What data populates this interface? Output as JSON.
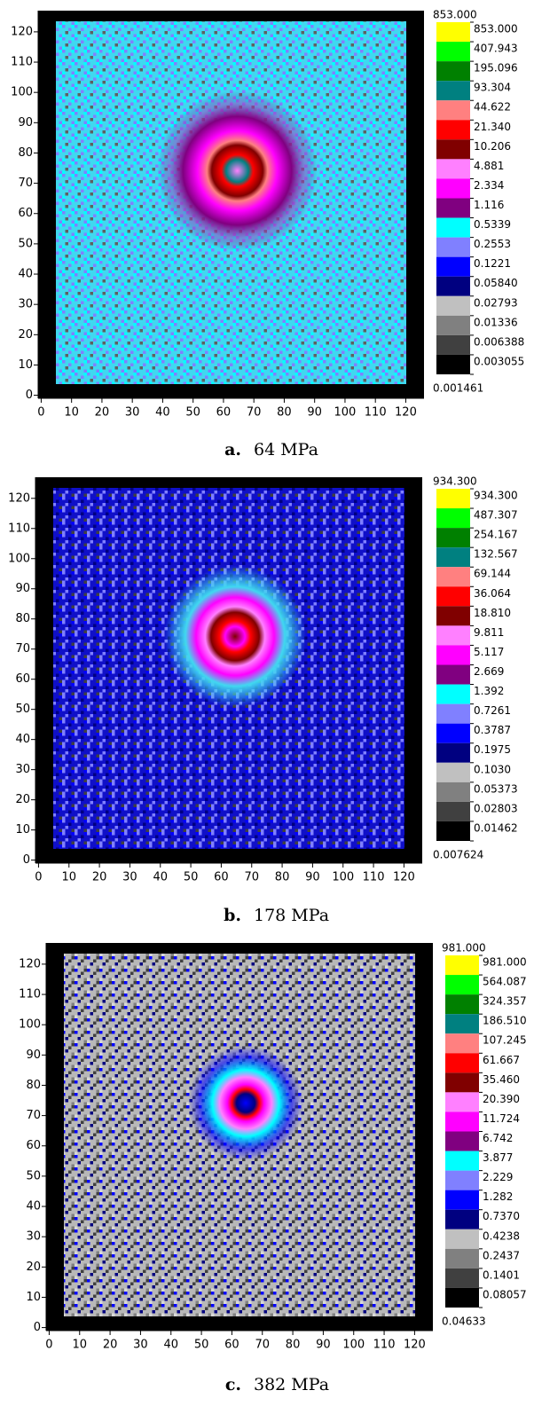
{
  "chart_data": [
    {
      "type": "heatmap",
      "panel_label": "a.",
      "title": "64 MPa",
      "xlim": [
        -1,
        126
      ],
      "ylim": [
        -1,
        127
      ],
      "xticks": [
        0,
        10,
        20,
        30,
        40,
        50,
        60,
        70,
        80,
        90,
        100,
        110,
        120
      ],
      "yticks": [
        0,
        10,
        20,
        30,
        40,
        50,
        60,
        70,
        80,
        90,
        100,
        110,
        120
      ],
      "colorbar": {
        "log": true,
        "cmax": {
          "value": 853,
          "label": "853.000"
        },
        "ticks": [
          {
            "value": 853,
            "label": "853.000"
          },
          407.943,
          195.096,
          93.304,
          44.622,
          {
            "value": 21.34,
            "label": "21.340"
          },
          10.206,
          4.881,
          2.334,
          1.116,
          0.5339,
          0.2553,
          0.1221,
          {
            "value": 0.0584,
            "label": "0.05840"
          },
          0.02793,
          0.01336,
          0.006388,
          0.003055,
          0.001461
        ],
        "colors": [
          "#ffff00",
          "#00ff00",
          "#008000",
          "#008080",
          "#ff8080",
          "#ff0000",
          "#800000",
          "#ff80ff",
          "#ff00ff",
          "#800080",
          "#00ffff",
          "#8080ff",
          "#0000ff",
          "#000080",
          "#c0c0c0",
          "#808080",
          "#404040",
          "#000000"
        ]
      }
    },
    {
      "type": "heatmap",
      "panel_label": "b.",
      "title": "178 MPa",
      "xlim": [
        -1,
        126
      ],
      "ylim": [
        -1,
        127
      ],
      "xticks": [
        0,
        10,
        20,
        30,
        40,
        50,
        60,
        70,
        80,
        90,
        100,
        110,
        120
      ],
      "yticks": [
        0,
        10,
        20,
        30,
        40,
        50,
        60,
        70,
        80,
        90,
        100,
        110,
        120
      ],
      "colorbar": {
        "log": true,
        "cmax": {
          "value": 934.3,
          "label": "934.300"
        },
        "ticks": [
          {
            "value": 934.3,
            "label": "934.300"
          },
          487.307,
          254.167,
          132.567,
          69.144,
          36.064,
          {
            "value": 18.81,
            "label": "18.810"
          },
          9.811,
          5.117,
          2.669,
          1.392,
          0.7261,
          0.3787,
          0.1975,
          {
            "value": 0.103,
            "label": "0.1030"
          },
          0.05373,
          0.02803,
          0.01462,
          0.007624
        ],
        "colors": [
          "#ffff00",
          "#00ff00",
          "#008000",
          "#008080",
          "#ff8080",
          "#ff0000",
          "#800000",
          "#ff80ff",
          "#ff00ff",
          "#800080",
          "#00ffff",
          "#8080ff",
          "#0000ff",
          "#000080",
          "#c0c0c0",
          "#808080",
          "#404040",
          "#000000"
        ]
      }
    },
    {
      "type": "heatmap",
      "panel_label": "c.",
      "title": "382 MPa",
      "xlim": [
        -1,
        126
      ],
      "ylim": [
        -1,
        127
      ],
      "xticks": [
        0,
        10,
        20,
        30,
        40,
        50,
        60,
        70,
        80,
        90,
        100,
        110,
        120
      ],
      "yticks": [
        0,
        10,
        20,
        30,
        40,
        50,
        60,
        70,
        80,
        90,
        100,
        110,
        120
      ],
      "colorbar": {
        "log": true,
        "cmax": {
          "value": 981,
          "label": "981.000"
        },
        "ticks": [
          {
            "value": 981,
            "label": "981.000"
          },
          564.087,
          324.357,
          {
            "value": 186.51,
            "label": "186.510"
          },
          107.245,
          61.667,
          {
            "value": 35.46,
            "label": "35.460"
          },
          {
            "value": 20.39,
            "label": "20.390"
          },
          11.724,
          6.742,
          3.877,
          2.229,
          1.282,
          {
            "value": 0.737,
            "label": "0.7370"
          },
          0.4238,
          0.2437,
          0.1401,
          0.08057,
          0.04633
        ],
        "colors": [
          "#ffff00",
          "#00ff00",
          "#008000",
          "#008080",
          "#ff8080",
          "#ff0000",
          "#800000",
          "#ff80ff",
          "#ff00ff",
          "#800080",
          "#00ffff",
          "#8080ff",
          "#0000ff",
          "#000080",
          "#c0c0c0",
          "#808080",
          "#404040",
          "#000000"
        ]
      }
    }
  ]
}
